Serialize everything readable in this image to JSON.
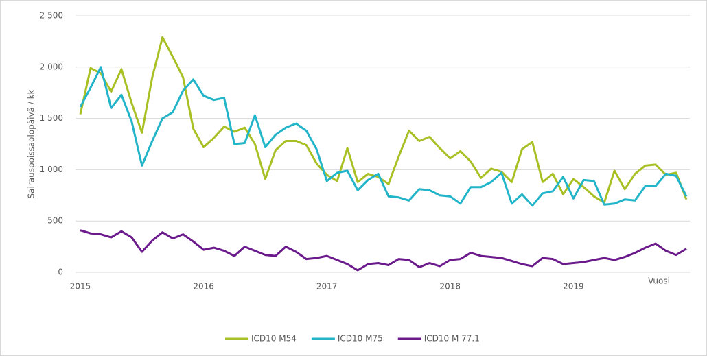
{
  "chart_data": {
    "type": "line",
    "y_label": "Sairauspoissaolopäivä  / kk",
    "x_label": "Vuosi",
    "categories": [
      "2015",
      null,
      null,
      null,
      null,
      null,
      null,
      null,
      null,
      null,
      null,
      null,
      "2016",
      null,
      null,
      null,
      null,
      null,
      null,
      null,
      null,
      null,
      null,
      null,
      "2017",
      null,
      null,
      null,
      null,
      null,
      null,
      null,
      null,
      null,
      null,
      null,
      "2018",
      null,
      null,
      null,
      null,
      null,
      null,
      null,
      null,
      null,
      null,
      null,
      "2019",
      null,
      null,
      null,
      null,
      null,
      null,
      null,
      null,
      null,
      null,
      null
    ],
    "series": [
      {
        "name": "ICD10 M54",
        "color": "#a9c025",
        "values": [
          1540,
          1990,
          1940,
          1760,
          1980,
          1650,
          1360,
          1900,
          2290,
          2100,
          1900,
          1400,
          1220,
          1310,
          1420,
          1370,
          1410,
          1250,
          910,
          1190,
          1280,
          1280,
          1240,
          1060,
          950,
          890,
          1210,
          880,
          960,
          930,
          860,
          1130,
          1380,
          1280,
          1320,
          1210,
          1110,
          1180,
          1080,
          920,
          1010,
          980,
          880,
          1200,
          1270,
          880,
          960,
          760,
          910,
          830,
          740,
          680,
          990,
          810,
          960,
          1040,
          1050,
          950,
          970,
          710
        ]
      },
      {
        "name": "ICD10 M75",
        "color": "#22b4c8",
        "values": [
          1610,
          1800,
          2000,
          1600,
          1730,
          1470,
          1040,
          1280,
          1500,
          1560,
          1770,
          1880,
          1720,
          1680,
          1700,
          1250,
          1260,
          1530,
          1220,
          1340,
          1410,
          1450,
          1380,
          1200,
          890,
          970,
          990,
          800,
          900,
          960,
          740,
          730,
          700,
          810,
          800,
          750,
          740,
          670,
          830,
          830,
          880,
          970,
          670,
          760,
          650,
          770,
          790,
          930,
          720,
          900,
          890,
          660,
          670,
          710,
          700,
          840,
          840,
          960,
          940,
          740
        ]
      },
      {
        "name": "ICD10 M 77.1",
        "color": "#6b1a8c",
        "values": [
          410,
          380,
          370,
          340,
          400,
          340,
          200,
          310,
          390,
          330,
          370,
          300,
          220,
          240,
          210,
          160,
          250,
          210,
          170,
          160,
          250,
          200,
          130,
          140,
          160,
          120,
          80,
          20,
          80,
          90,
          70,
          130,
          120,
          50,
          90,
          60,
          120,
          130,
          190,
          160,
          150,
          140,
          110,
          80,
          60,
          140,
          130,
          80,
          90,
          100,
          120,
          140,
          120,
          150,
          190,
          240,
          280,
          210,
          170,
          230
        ]
      }
    ],
    "ylim": [
      0,
      2500
    ],
    "yticks": [
      0,
      500,
      {
        "value": 1000,
        "label": "1 000"
      },
      {
        "value": 1500,
        "label": "1 500"
      },
      {
        "value": 2000,
        "label": "2 000"
      },
      {
        "value": 2500,
        "label": "2 500"
      }
    ],
    "grid": true,
    "legend": "bottom"
  }
}
